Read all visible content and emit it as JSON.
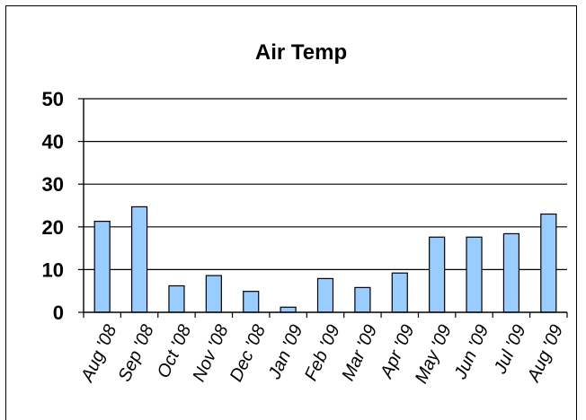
{
  "chart_data": {
    "type": "bar",
    "title": "Air Temp",
    "xlabel": "",
    "ylabel": "",
    "categories": [
      "Aug '08",
      "Sep '08",
      "Oct '08",
      "Nov '08",
      "Dec '08",
      "Jan '09",
      "Feb '09",
      "Mar '09",
      "Apr '09",
      "May '09",
      "Jun '09",
      "Jul '09",
      "Aug '09"
    ],
    "values": [
      21.3,
      24.7,
      6.2,
      8.6,
      4.9,
      1.2,
      7.9,
      5.8,
      9.2,
      17.6,
      17.6,
      18.4,
      23.0
    ],
    "ylim": [
      0,
      50
    ],
    "yticks": [
      0,
      10,
      20,
      30,
      40,
      50
    ],
    "grid": true,
    "legend": "none",
    "bar_color": "#99CCFF",
    "bar_edge_color": "#000000"
  }
}
